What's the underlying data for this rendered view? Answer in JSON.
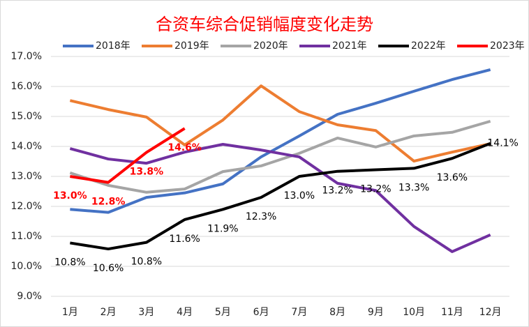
{
  "chart_data": {
    "type": "line",
    "title": "合资车综合促销幅度变化走势",
    "categories": [
      "1月",
      "2月",
      "3月",
      "4月",
      "5月",
      "6月",
      "7月",
      "8月",
      "9月",
      "10月",
      "11月",
      "12月"
    ],
    "series": [
      {
        "name": "2018年",
        "color": "#4472c4",
        "values": [
          11.9,
          11.8,
          12.3,
          12.45,
          12.75,
          13.65,
          14.35,
          15.07,
          15.44,
          15.84,
          16.23,
          16.56
        ]
      },
      {
        "name": "2019年",
        "color": "#ed7d31",
        "values": [
          15.53,
          15.23,
          14.98,
          14.05,
          14.88,
          16.02,
          15.16,
          14.72,
          14.53,
          13.51,
          13.81,
          14.09
        ]
      },
      {
        "name": "2020年",
        "color": "#a5a5a5",
        "values": [
          13.12,
          12.7,
          12.47,
          12.58,
          13.16,
          13.35,
          13.77,
          14.28,
          13.98,
          14.35,
          14.47,
          14.84
        ]
      },
      {
        "name": "2021年",
        "color": "#7030a0",
        "values": [
          13.93,
          13.58,
          13.44,
          13.81,
          14.07,
          13.88,
          13.65,
          12.77,
          12.53,
          11.33,
          10.49,
          11.05
        ]
      },
      {
        "name": "2022年",
        "color": "#000000",
        "values": [
          10.78,
          10.58,
          10.8,
          11.56,
          11.9,
          12.3,
          13.0,
          13.17,
          13.22,
          13.27,
          13.6,
          14.1
        ],
        "value_labels": [
          "10.8%",
          "10.6%",
          "10.8%",
          "11.6%",
          "11.9%",
          "12.3%",
          "13.0%",
          "13.2%",
          "13.2%",
          "13.3%",
          "13.6%",
          "14.1%"
        ]
      },
      {
        "name": "2023年",
        "color": "#ff0000",
        "values": [
          13.0,
          12.8,
          13.8,
          14.6,
          null,
          null,
          null,
          null,
          null,
          null,
          null,
          null
        ],
        "value_labels": [
          "13.0%",
          "12.8%",
          "13.8%",
          "14.6%",
          null,
          null,
          null,
          null,
          null,
          null,
          null,
          null
        ]
      }
    ],
    "ylim": [
      9,
      17
    ],
    "yticks": [
      {
        "value": 9,
        "label": "9.0%"
      },
      {
        "value": 10,
        "label": "10.0%"
      },
      {
        "value": 11,
        "label": "11.0%"
      },
      {
        "value": 12,
        "label": "12.0%"
      },
      {
        "value": 13,
        "label": "13.0%"
      },
      {
        "value": 14,
        "label": "14.0%"
      },
      {
        "value": 15,
        "label": "15.0%"
      },
      {
        "value": 16,
        "label": "16.0%"
      },
      {
        "value": 17,
        "label": "17.0%"
      }
    ],
    "grid": true,
    "legend": "top"
  }
}
